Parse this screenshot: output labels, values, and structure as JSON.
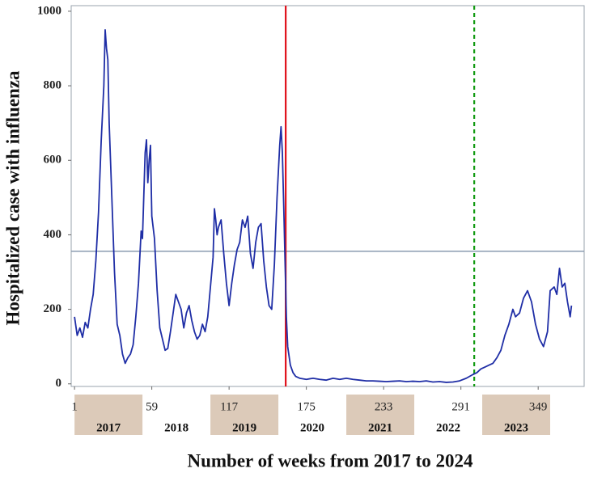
{
  "chart_data": {
    "type": "line",
    "x_label": "Number of weeks from 2017 to 2024",
    "y_label": "Hospitalized case with influenza",
    "xlim": [
      -1.5,
      383.5
    ],
    "ylim": [
      -7,
      1015
    ],
    "xticks": [
      1,
      59,
      117,
      175,
      233,
      291,
      349
    ],
    "yticks": [
      0,
      200,
      400,
      600,
      800,
      1000
    ],
    "grid": false,
    "series": [
      {
        "color": "#1f2ea6",
        "x": [
          1,
          3,
          5,
          7,
          9,
          11,
          13,
          15,
          17,
          19,
          21,
          23,
          24,
          25,
          26,
          27,
          29,
          31,
          33,
          35,
          37,
          39,
          41,
          43,
          45,
          47,
          49,
          51,
          52,
          54,
          55,
          56,
          57,
          58,
          59,
          61,
          63,
          65,
          67,
          69,
          71,
          73,
          75,
          77,
          79,
          81,
          83,
          85,
          87,
          89,
          91,
          93,
          95,
          97,
          99,
          101,
          103,
          105,
          106,
          107,
          108,
          109,
          111,
          113,
          115,
          117,
          119,
          121,
          123,
          125,
          127,
          129,
          131,
          133,
          135,
          137,
          139,
          141,
          143,
          145,
          147,
          149,
          151,
          153,
          155,
          156,
          157,
          158,
          159,
          160,
          161,
          163,
          165,
          167,
          170,
          175,
          180,
          185,
          190,
          195,
          200,
          205,
          210,
          215,
          220,
          225,
          230,
          235,
          240,
          245,
          250,
          255,
          260,
          265,
          270,
          275,
          280,
          285,
          290,
          295,
          300,
          303,
          306,
          309,
          312,
          315,
          318,
          321,
          324,
          327,
          330,
          332,
          335,
          338,
          341,
          344,
          347,
          350,
          353,
          356,
          358,
          361,
          363,
          365,
          367,
          369,
          371,
          373,
          374
        ],
        "values": [
          180,
          130,
          150,
          125,
          165,
          150,
          200,
          240,
          330,
          460,
          650,
          800,
          950,
          900,
          870,
          700,
          500,
          300,
          160,
          130,
          80,
          55,
          70,
          80,
          105,
          180,
          270,
          410,
          390,
          620,
          655,
          540,
          600,
          640,
          450,
          390,
          250,
          150,
          120,
          90,
          95,
          140,
          190,
          240,
          220,
          200,
          150,
          190,
          210,
          170,
          140,
          120,
          130,
          160,
          140,
          180,
          260,
          340,
          470,
          440,
          400,
          420,
          440,
          350,
          270,
          210,
          270,
          320,
          360,
          380,
          440,
          420,
          450,
          350,
          310,
          380,
          420,
          430,
          330,
          260,
          210,
          200,
          320,
          500,
          640,
          690,
          620,
          480,
          330,
          180,
          100,
          50,
          30,
          20,
          15,
          12,
          15,
          12,
          10,
          15,
          12,
          15,
          12,
          10,
          8,
          8,
          7,
          6,
          7,
          8,
          6,
          7,
          6,
          8,
          5,
          6,
          4,
          5,
          8,
          15,
          25,
          30,
          40,
          45,
          50,
          55,
          70,
          90,
          130,
          160,
          200,
          180,
          190,
          230,
          250,
          220,
          160,
          120,
          100,
          140,
          250,
          260,
          240,
          310,
          260,
          270,
          220,
          180,
          210
        ]
      }
    ],
    "hlines": [
      {
        "value": 356,
        "color": "#8a9bb0"
      }
    ],
    "vlines": [
      {
        "value": 159.5,
        "color": "#e0101a",
        "dashed": false
      },
      {
        "value": 301,
        "color": "#119a11",
        "dashed": true
      }
    ],
    "year_bands": [
      {
        "label": "2017",
        "start": 1,
        "end": 52,
        "shaded": true
      },
      {
        "label": "2018",
        "start": 52,
        "end": 103,
        "shaded": false
      },
      {
        "label": "2019",
        "start": 103,
        "end": 154,
        "shaded": true
      },
      {
        "label": "2020",
        "start": 154,
        "end": 205,
        "shaded": false
      },
      {
        "label": "2021",
        "start": 205,
        "end": 256,
        "shaded": true
      },
      {
        "label": "2022",
        "start": 256,
        "end": 307,
        "shaded": false
      },
      {
        "label": "2023",
        "start": 307,
        "end": 358,
        "shaded": true
      }
    ],
    "band_color": "#dccab9"
  }
}
